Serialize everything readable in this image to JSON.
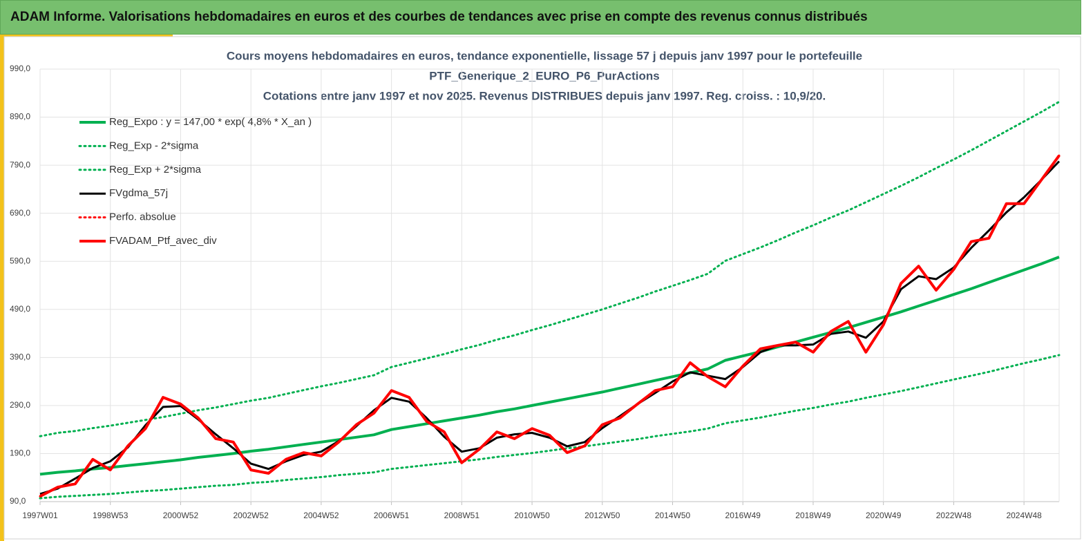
{
  "header": {
    "title": "ADAM Informe. Valorisations hebdomadaires en euros et des courbes de tendances avec prise en compte des revenus connus distribués"
  },
  "chart_data": {
    "type": "line",
    "title": [
      "Cours moyens hebdomadaires  en euros, tendance exponentielle, lissage 57 j depuis janv 1997 pour le portefeuille",
      "PTF_Generique_2_EURO_P6_PurActions",
      "Cotations  entre janv 1997 et nov 2025. Revenus DISTRIBUES depuis janv 1997. Reg. croiss. : 10,9/20."
    ],
    "categories": [
      "1997W01",
      null,
      null,
      null,
      "1998W53",
      null,
      null,
      null,
      "2000W52",
      null,
      null,
      null,
      "2002W52",
      null,
      null,
      null,
      "2004W52",
      null,
      null,
      null,
      "2006W51",
      null,
      null,
      null,
      "2008W51",
      null,
      null,
      null,
      "2010W50",
      null,
      null,
      null,
      "2012W50",
      null,
      null,
      null,
      "2014W50",
      null,
      null,
      null,
      "2016W49",
      null,
      null,
      null,
      "2018W49",
      null,
      null,
      null,
      "2020W49",
      null,
      null,
      null,
      "2022W48",
      null,
      null,
      null,
      "2024W48",
      null,
      null
    ],
    "ylim": [
      90,
      990
    ],
    "yticks": [
      {
        "value": 90,
        "label": "90,0"
      },
      {
        "value": 190,
        "label": "190,0"
      },
      {
        "value": 290,
        "label": "290,0"
      },
      {
        "value": 390,
        "label": "390,0"
      },
      {
        "value": 490,
        "label": "490,0"
      },
      {
        "value": 590,
        "label": "590,0"
      },
      {
        "value": 690,
        "label": "690,0"
      },
      {
        "value": 790,
        "label": "790,0"
      },
      {
        "value": 890,
        "label": "890,0"
      },
      {
        "value": 990,
        "label": "990,0"
      }
    ],
    "grid": true,
    "legend": "top-left",
    "series": [
      {
        "name": "Reg_Expo : y = 147,00 * exp( 4,8% *  X_an )",
        "color": "#00b050",
        "style": "solid",
        "width": 4,
        "values": [
          147,
          151,
          154,
          158,
          161,
          165,
          169,
          173,
          177,
          182,
          186,
          190,
          195,
          199,
          204,
          209,
          214,
          219,
          224,
          229,
          240,
          246,
          252,
          258,
          264,
          270,
          277,
          283,
          290,
          297,
          304,
          311,
          318,
          326,
          334,
          342,
          350,
          358,
          366,
          384,
          393,
          402,
          412,
          422,
          432,
          442,
          452,
          463,
          474,
          485,
          497,
          509,
          521,
          533,
          546,
          559,
          572,
          585,
          599
        ]
      },
      {
        "name": "Reg_Exp - 2*sigma",
        "color": "#00b050",
        "style": "dotted",
        "width": 3,
        "values": [
          97,
          100,
          102,
          104,
          106,
          109,
          112,
          114,
          117,
          120,
          123,
          125,
          129,
          131,
          135,
          138,
          141,
          145,
          148,
          151,
          158,
          162,
          166,
          170,
          174,
          178,
          183,
          187,
          191,
          196,
          201,
          205,
          210,
          215,
          220,
          226,
          231,
          236,
          242,
          253,
          259,
          265,
          272,
          279,
          285,
          292,
          298,
          306,
          313,
          320,
          328,
          336,
          344,
          352,
          360,
          369,
          378,
          386,
          395
        ]
      },
      {
        "name": "Reg_Exp + 2*sigma",
        "color": "#00b050",
        "style": "dotted",
        "width": 3,
        "values": [
          226,
          233,
          237,
          243,
          248,
          254,
          260,
          266,
          273,
          280,
          286,
          293,
          300,
          306,
          314,
          322,
          330,
          337,
          345,
          353,
          370,
          379,
          388,
          397,
          407,
          416,
          427,
          436,
          447,
          457,
          468,
          479,
          490,
          502,
          514,
          527,
          539,
          551,
          564,
          591,
          605,
          619,
          634,
          650,
          665,
          681,
          696,
          713,
          730,
          747,
          765,
          784,
          802,
          821,
          841,
          861,
          881,
          901,
          922
        ]
      },
      {
        "name": "FVgdma_57j",
        "color": "#000000",
        "style": "solid",
        "width": 3,
        "values": [
          106,
          117,
          138,
          160,
          174,
          203,
          249,
          287,
          289,
          261,
          230,
          201,
          169,
          158,
          174,
          187,
          194,
          216,
          247,
          280,
          306,
          298,
          264,
          225,
          194,
          201,
          223,
          230,
          233,
          223,
          205,
          214,
          243,
          268,
          293,
          316,
          340,
          359,
          352,
          345,
          370,
          401,
          415,
          415,
          417,
          439,
          444,
          431,
          465,
          532,
          559,
          553,
          577,
          618,
          654,
          692,
          723,
          760,
          798
        ]
      },
      {
        "name": "Perfo. absolue",
        "color": "#ff0000",
        "style": "dotted",
        "width": 3,
        "values": [
          101,
          120,
          127,
          178,
          156,
          206,
          242,
          307,
          293,
          264,
          221,
          214,
          156,
          149,
          178,
          192,
          185,
          214,
          250,
          274,
          321,
          307,
          257,
          235,
          171,
          199,
          235,
          221,
          242,
          228,
          192,
          206,
          250,
          264,
          293,
          321,
          329,
          379,
          350,
          329,
          372,
          408,
          415,
          422,
          401,
          444,
          465,
          401,
          458,
          544,
          580,
          530,
          573,
          631,
          638,
          710,
          710,
          760,
          810
        ]
      },
      {
        "name": "FVADAM_Ptf_avec_div",
        "color": "#ff0000",
        "style": "solid",
        "width": 4,
        "values": [
          101,
          120,
          127,
          178,
          156,
          206,
          242,
          307,
          293,
          264,
          221,
          214,
          156,
          149,
          178,
          192,
          185,
          214,
          250,
          274,
          321,
          307,
          257,
          235,
          171,
          199,
          235,
          221,
          242,
          228,
          192,
          206,
          250,
          264,
          293,
          321,
          329,
          379,
          350,
          329,
          372,
          408,
          415,
          422,
          401,
          444,
          465,
          401,
          458,
          544,
          580,
          530,
          573,
          631,
          638,
          710,
          710,
          760,
          810
        ]
      }
    ]
  }
}
